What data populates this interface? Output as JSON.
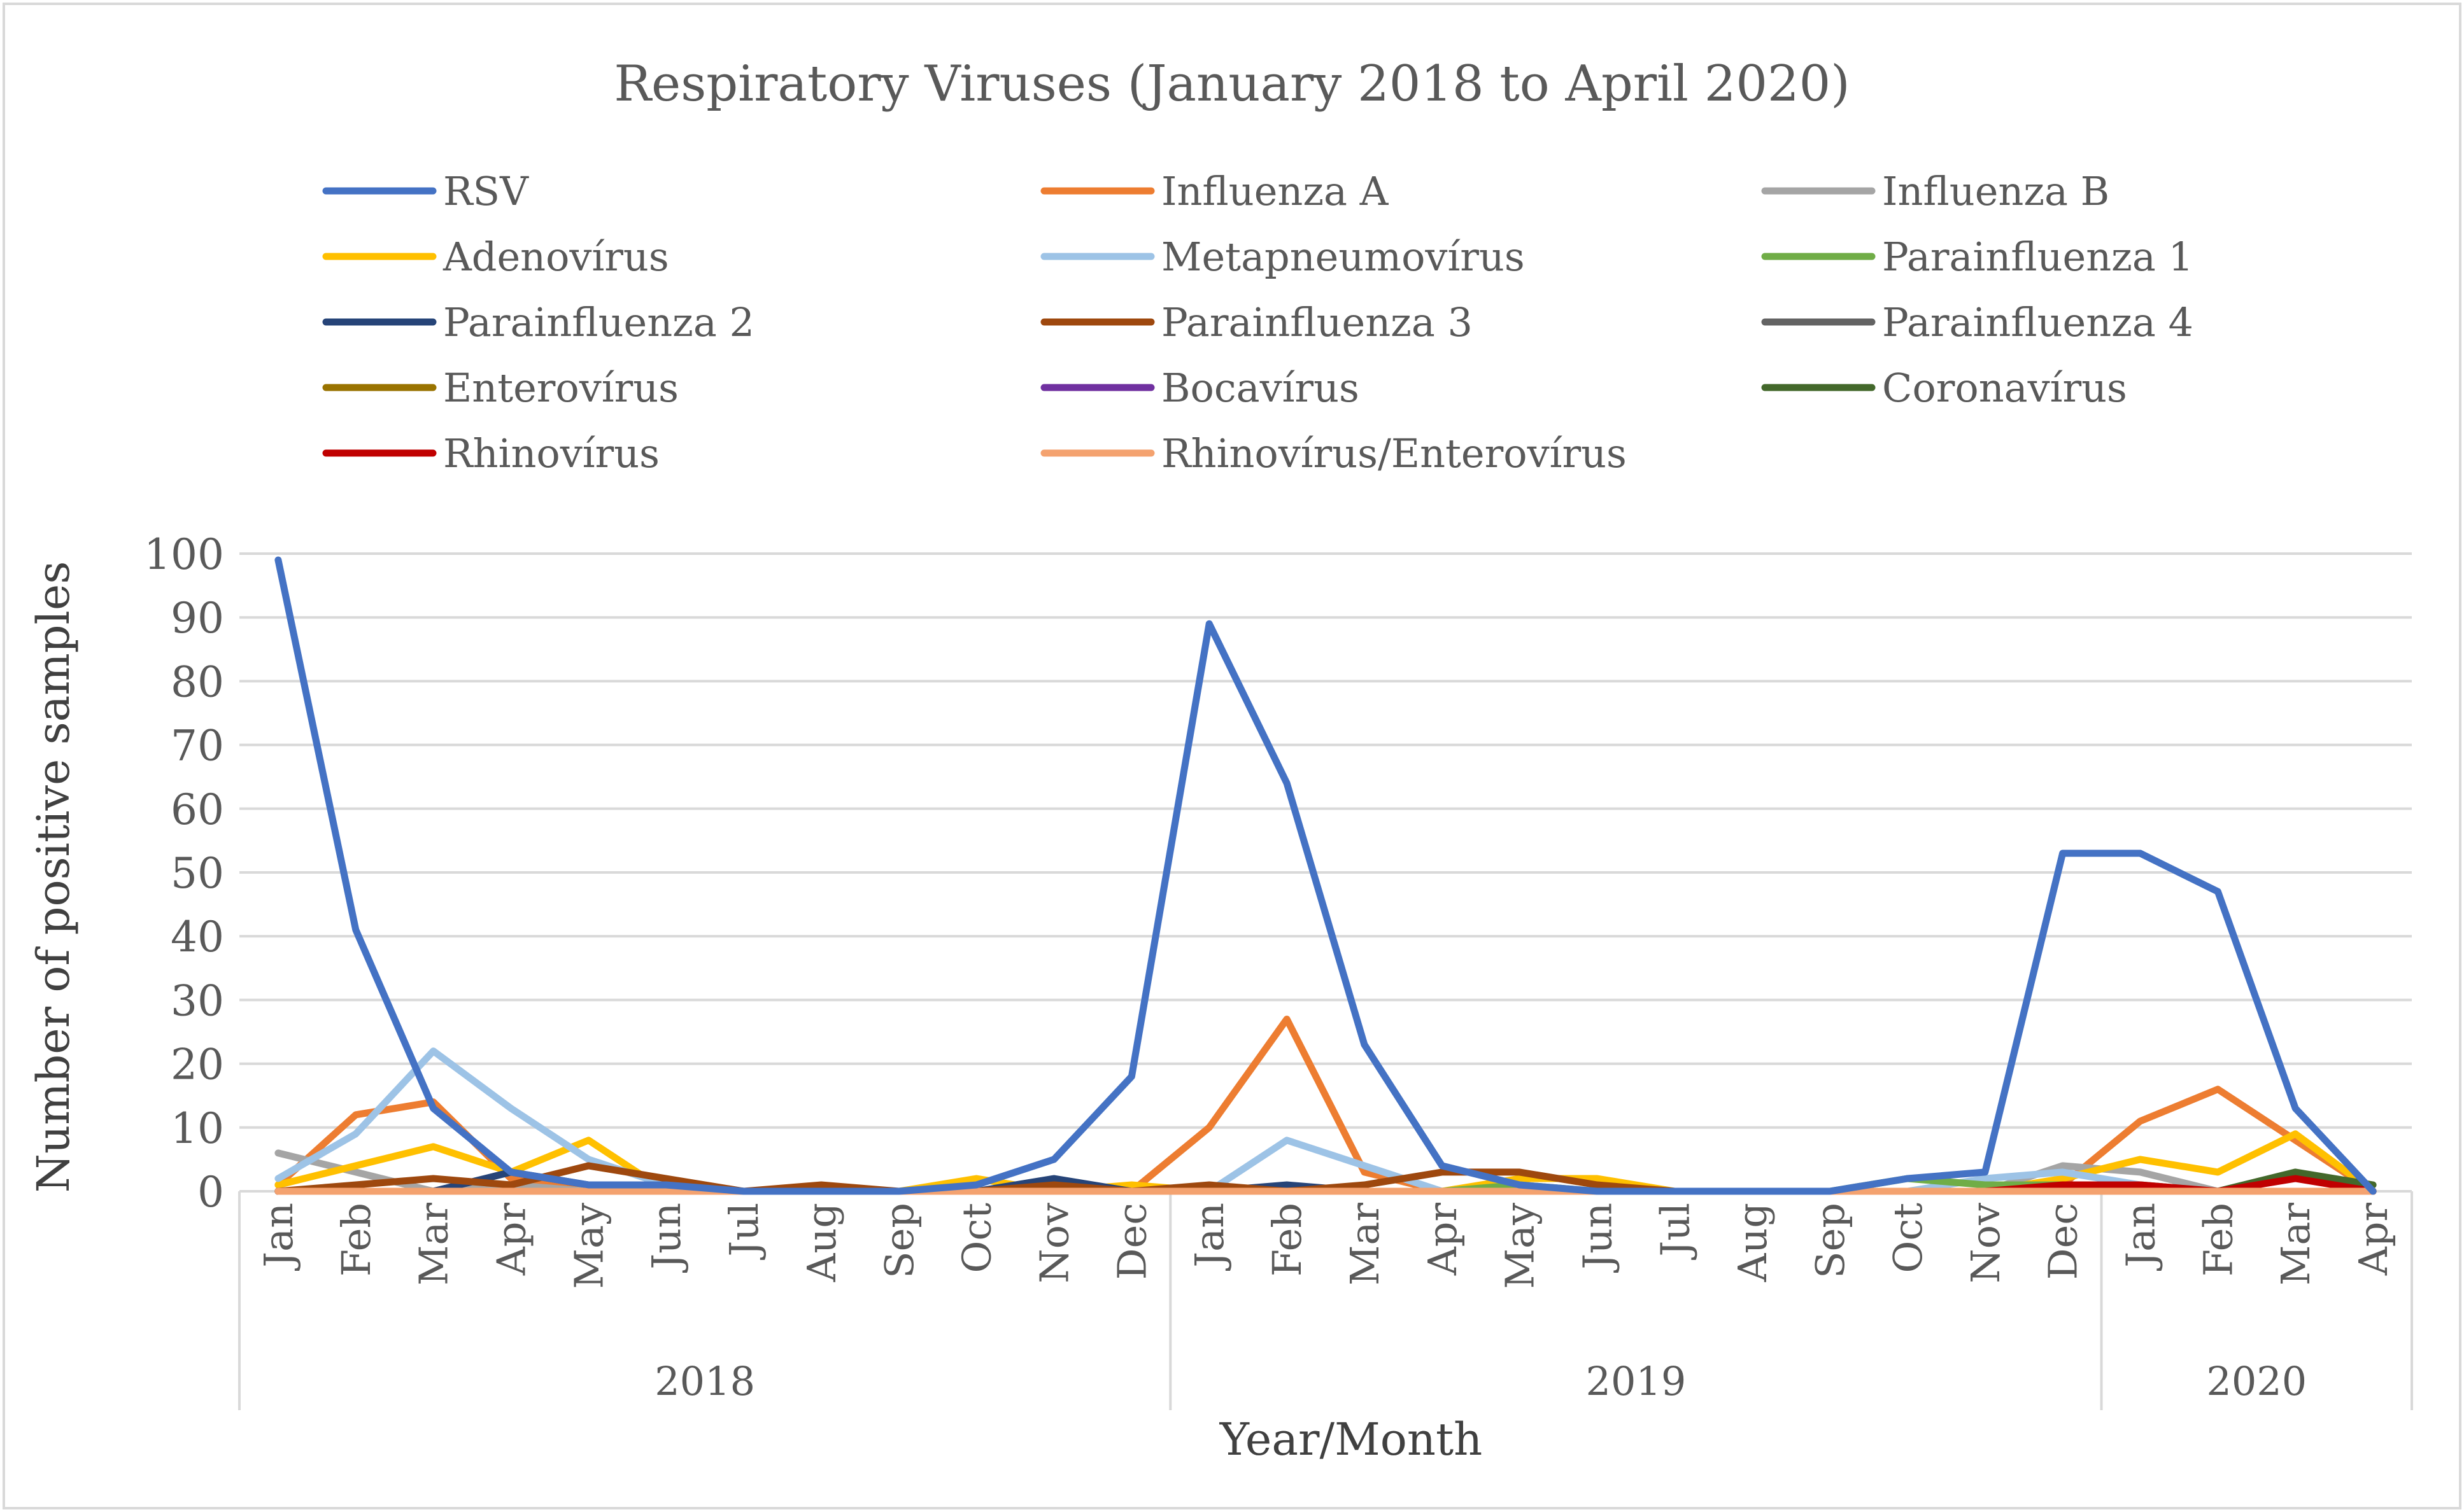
{
  "chart_data": {
    "type": "line",
    "title": "Respiratory Viruses (January 2018 to April 2020)",
    "xlabel": "Year/Month",
    "ylabel": "Number of positive samples",
    "ylim": [
      0,
      100
    ],
    "yticks": [
      0,
      10,
      20,
      30,
      40,
      50,
      60,
      70,
      80,
      90,
      100
    ],
    "grid": true,
    "legend_position": "top",
    "categories": [
      "Jan",
      "Feb",
      "Mar",
      "Apr",
      "May",
      "Jun",
      "Jul",
      "Aug",
      "Sep",
      "Oct",
      "Nov",
      "Dec",
      "Jan",
      "Feb",
      "Mar",
      "Apr",
      "May",
      "Jun",
      "Jul",
      "Aug",
      "Sep",
      "Oct",
      "Nov",
      "Dec",
      "Jan",
      "Feb",
      "Mar",
      "Apr"
    ],
    "year_groups": [
      {
        "label": "2018",
        "start": 0,
        "end": 11
      },
      {
        "label": "2019",
        "start": 12,
        "end": 23
      },
      {
        "label": "2020",
        "start": 24,
        "end": 27
      }
    ],
    "series": [
      {
        "name": "RSV",
        "color": "#4472C4",
        "values": [
          99,
          41,
          13,
          3,
          1,
          1,
          0,
          0,
          0,
          1,
          5,
          18,
          89,
          64,
          23,
          4,
          1,
          0,
          0,
          0,
          0,
          2,
          3,
          53,
          53,
          47,
          13,
          0
        ]
      },
      {
        "name": "Influenza A",
        "color": "#ED7D31",
        "values": [
          1,
          12,
          14,
          2,
          1,
          0,
          0,
          0,
          0,
          0,
          0,
          0,
          10,
          27,
          3,
          0,
          0,
          0,
          0,
          0,
          0,
          0,
          0,
          1,
          11,
          16,
          8,
          0
        ]
      },
      {
        "name": "Influenza B",
        "color": "#A5A5A5",
        "values": [
          6,
          3,
          0,
          1,
          0,
          0,
          0,
          0,
          0,
          0,
          0,
          0,
          0,
          0,
          0,
          0,
          0,
          0,
          0,
          0,
          0,
          0,
          0,
          4,
          3,
          0,
          0,
          0
        ]
      },
      {
        "name": "Adenovírus",
        "color": "#FFC000",
        "values": [
          1,
          4,
          7,
          3,
          8,
          0,
          0,
          0,
          0,
          2,
          0,
          1,
          0,
          0,
          0,
          0,
          2,
          2,
          0,
          0,
          0,
          0,
          0,
          2,
          5,
          3,
          9,
          0
        ]
      },
      {
        "name": "Metapneumovírus",
        "color": "#9DC3E6",
        "values": [
          2,
          9,
          22,
          13,
          5,
          1,
          0,
          0,
          0,
          0,
          0,
          0,
          0,
          8,
          4,
          0,
          0,
          0,
          0,
          0,
          0,
          0,
          2,
          3,
          1,
          0,
          0,
          0
        ]
      },
      {
        "name": "Parainfluenza 1",
        "color": "#70AD47",
        "values": [
          0,
          0,
          0,
          0,
          0,
          0,
          0,
          0,
          0,
          0,
          0,
          0,
          0,
          0,
          0,
          0,
          1,
          0,
          0,
          0,
          0,
          2,
          1,
          1,
          1,
          0,
          0,
          0
        ]
      },
      {
        "name": "Parainfluenza 2",
        "color": "#264478",
        "values": [
          0,
          0,
          0,
          3,
          1,
          1,
          0,
          0,
          0,
          0,
          2,
          0,
          0,
          1,
          0,
          0,
          0,
          0,
          0,
          0,
          0,
          0,
          0,
          0,
          0,
          0,
          0,
          0
        ]
      },
      {
        "name": "Parainfluenza 3",
        "color": "#9E480E",
        "values": [
          0,
          1,
          2,
          1,
          4,
          2,
          0,
          1,
          0,
          0,
          1,
          0,
          1,
          0,
          1,
          3,
          3,
          1,
          0,
          0,
          0,
          0,
          0,
          0,
          0,
          0,
          0,
          0
        ]
      },
      {
        "name": "Parainfluenza 4",
        "color": "#636363",
        "values": [
          0,
          0,
          0,
          0,
          0,
          0,
          0,
          0,
          0,
          0,
          0,
          0,
          0,
          0,
          0,
          0,
          0,
          0,
          0,
          0,
          0,
          0,
          0,
          0,
          0,
          0,
          0,
          0
        ]
      },
      {
        "name": "Enterovírus",
        "color": "#997300",
        "values": [
          0,
          0,
          0,
          0,
          0,
          0,
          0,
          0,
          0,
          0,
          0,
          0,
          0,
          0,
          0,
          0,
          0,
          0,
          0,
          0,
          0,
          0,
          0,
          0,
          0,
          0,
          0,
          0
        ]
      },
      {
        "name": "Bocavírus",
        "color": "#7030A0",
        "values": [
          0,
          0,
          0,
          0,
          0,
          0,
          0,
          0,
          0,
          0,
          0,
          0,
          0,
          0,
          0,
          0,
          0,
          0,
          0,
          0,
          0,
          0,
          0,
          0,
          0,
          0,
          0,
          0
        ]
      },
      {
        "name": "Coronavírus",
        "color": "#43682B",
        "values": [
          0,
          0,
          0,
          0,
          0,
          0,
          0,
          0,
          0,
          0,
          0,
          0,
          0,
          0,
          0,
          0,
          0,
          0,
          0,
          0,
          0,
          0,
          0,
          0,
          0,
          0,
          3,
          1
        ]
      },
      {
        "name": "Rhinovírus",
        "color": "#C00000",
        "values": [
          0,
          0,
          0,
          0,
          0,
          0,
          0,
          0,
          0,
          0,
          0,
          0,
          0,
          0,
          0,
          0,
          0,
          0,
          0,
          0,
          0,
          0,
          0,
          1,
          1,
          0,
          2,
          0
        ]
      },
      {
        "name": "Rhinovírus/Enterovírus",
        "color": "#F4A26F",
        "values": [
          0,
          0,
          0,
          0,
          0,
          0,
          0,
          0,
          0,
          0,
          0,
          0,
          0,
          0,
          0,
          0,
          0,
          0,
          0,
          0,
          0,
          0,
          0,
          0,
          0,
          0,
          0,
          0
        ]
      }
    ]
  }
}
